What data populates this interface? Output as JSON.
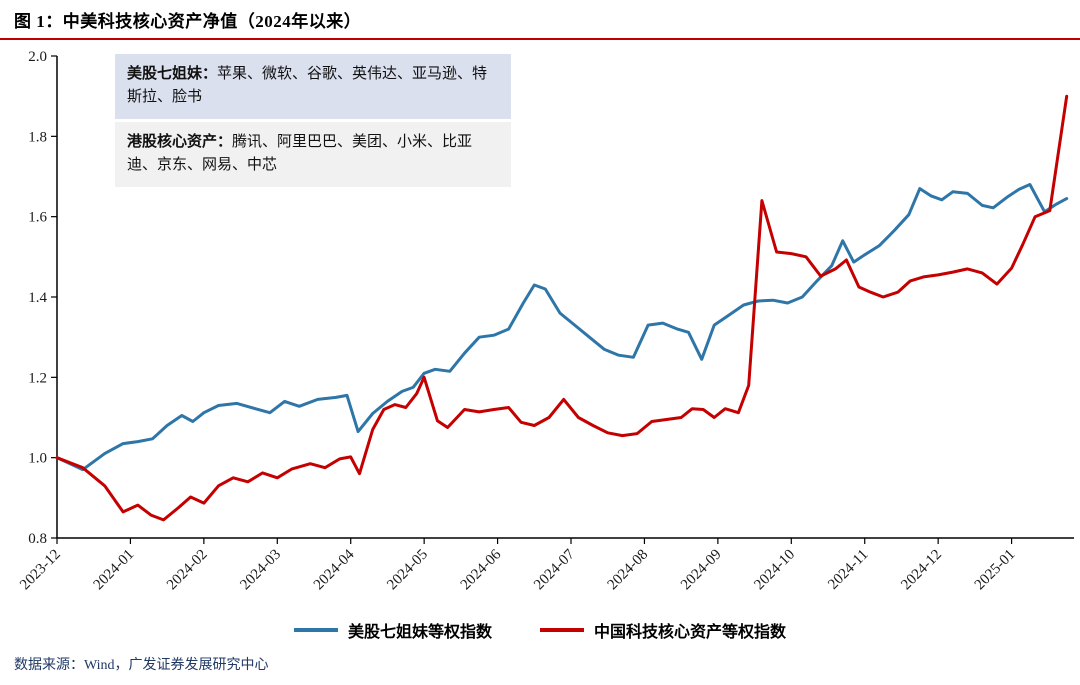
{
  "figure": {
    "title": "图 1：中美科技核心资产净值（2024年以来）",
    "source": "数据来源：Wind，广发证券发展研究中心"
  },
  "annotations": {
    "box1_label": "美股七姐妹：",
    "box1_text": "苹果、微软、谷歌、英伟达、亚马逊、特斯拉、脸书",
    "box2_label": "港股核心资产：",
    "box2_text": "腾讯、阿里巴巴、美团、小米、比亚迪、京东、网易、中芯"
  },
  "legend": [
    {
      "label": "美股七姐妹等权指数",
      "color": "#2e75a8"
    },
    {
      "label": "中国科技核心资产等权指数",
      "color": "#c40000"
    }
  ],
  "colors": {
    "accent_rule": "#c00000",
    "axis": "#000000",
    "note1_bg": "#dbe0ef",
    "note2_bg": "#f1f1f1"
  },
  "chart_data": {
    "type": "line",
    "title": "中美科技核心资产净值（2024年以来）",
    "xlabel": "",
    "ylabel": "",
    "grid": false,
    "legend_position": "bottom",
    "ylim": [
      0.8,
      2.0
    ],
    "y_ticks": [
      "2.0",
      "1.8",
      "1.6",
      "1.4",
      "1.2",
      "1.0",
      "0.8"
    ],
    "y_tick_values": [
      2.0,
      1.8,
      1.6,
      1.4,
      1.2,
      1.0,
      0.8
    ],
    "xlim": [
      0,
      13.85
    ],
    "x_tick_positions": [
      0,
      1,
      2,
      3,
      4,
      5,
      6,
      7,
      8,
      9,
      10,
      11,
      12,
      13
    ],
    "x_tick_labels": [
      "2023-12",
      "2024-01",
      "2024-02",
      "2024-03",
      "2024-04",
      "2024-05",
      "2024-06",
      "2024-07",
      "2024-08",
      "2024-09",
      "2024-10",
      "2024-11",
      "2024-12",
      "2025-01"
    ],
    "series": [
      {
        "name": "美股七姐妹等权指数",
        "color": "#2e75a8",
        "width": 3,
        "points": [
          [
            0.0,
            1.0
          ],
          [
            0.35,
            0.97
          ],
          [
            0.65,
            1.01
          ],
          [
            0.9,
            1.035
          ],
          [
            1.1,
            1.04
          ],
          [
            1.3,
            1.047
          ],
          [
            1.5,
            1.08
          ],
          [
            1.7,
            1.105
          ],
          [
            1.85,
            1.09
          ],
          [
            2.0,
            1.112
          ],
          [
            2.2,
            1.13
          ],
          [
            2.45,
            1.135
          ],
          [
            2.7,
            1.122
          ],
          [
            2.9,
            1.112
          ],
          [
            3.1,
            1.14
          ],
          [
            3.3,
            1.128
          ],
          [
            3.55,
            1.145
          ],
          [
            3.8,
            1.15
          ],
          [
            3.95,
            1.155
          ],
          [
            4.1,
            1.065
          ],
          [
            4.3,
            1.11
          ],
          [
            4.5,
            1.14
          ],
          [
            4.7,
            1.165
          ],
          [
            4.85,
            1.175
          ],
          [
            5.0,
            1.21
          ],
          [
            5.15,
            1.22
          ],
          [
            5.35,
            1.215
          ],
          [
            5.55,
            1.26
          ],
          [
            5.75,
            1.3
          ],
          [
            5.95,
            1.305
          ],
          [
            6.15,
            1.32
          ],
          [
            6.35,
            1.385
          ],
          [
            6.5,
            1.43
          ],
          [
            6.65,
            1.42
          ],
          [
            6.85,
            1.36
          ],
          [
            7.05,
            1.33
          ],
          [
            7.25,
            1.3
          ],
          [
            7.45,
            1.27
          ],
          [
            7.65,
            1.255
          ],
          [
            7.85,
            1.25
          ],
          [
            8.05,
            1.33
          ],
          [
            8.25,
            1.335
          ],
          [
            8.45,
            1.32
          ],
          [
            8.6,
            1.312
          ],
          [
            8.78,
            1.245
          ],
          [
            8.95,
            1.33
          ],
          [
            9.15,
            1.355
          ],
          [
            9.35,
            1.38
          ],
          [
            9.55,
            1.39
          ],
          [
            9.75,
            1.392
          ],
          [
            9.95,
            1.385
          ],
          [
            10.15,
            1.4
          ],
          [
            10.35,
            1.44
          ],
          [
            10.55,
            1.478
          ],
          [
            10.7,
            1.54
          ],
          [
            10.85,
            1.487
          ],
          [
            11.0,
            1.505
          ],
          [
            11.2,
            1.528
          ],
          [
            11.4,
            1.565
          ],
          [
            11.6,
            1.605
          ],
          [
            11.75,
            1.67
          ],
          [
            11.9,
            1.652
          ],
          [
            12.05,
            1.642
          ],
          [
            12.2,
            1.662
          ],
          [
            12.4,
            1.658
          ],
          [
            12.6,
            1.628
          ],
          [
            12.75,
            1.622
          ],
          [
            12.95,
            1.65
          ],
          [
            13.1,
            1.668
          ],
          [
            13.25,
            1.68
          ],
          [
            13.45,
            1.612
          ],
          [
            13.6,
            1.63
          ],
          [
            13.75,
            1.645
          ]
        ]
      },
      {
        "name": "中国科技核心资产等权指数",
        "color": "#c40000",
        "width": 3,
        "points": [
          [
            0.0,
            1.0
          ],
          [
            0.35,
            0.975
          ],
          [
            0.65,
            0.93
          ],
          [
            0.9,
            0.865
          ],
          [
            1.1,
            0.882
          ],
          [
            1.28,
            0.857
          ],
          [
            1.45,
            0.845
          ],
          [
            1.65,
            0.875
          ],
          [
            1.82,
            0.902
          ],
          [
            2.0,
            0.887
          ],
          [
            2.2,
            0.93
          ],
          [
            2.4,
            0.95
          ],
          [
            2.6,
            0.94
          ],
          [
            2.8,
            0.962
          ],
          [
            3.0,
            0.95
          ],
          [
            3.2,
            0.972
          ],
          [
            3.45,
            0.985
          ],
          [
            3.65,
            0.975
          ],
          [
            3.85,
            0.997
          ],
          [
            4.0,
            1.002
          ],
          [
            4.12,
            0.96
          ],
          [
            4.3,
            1.07
          ],
          [
            4.45,
            1.12
          ],
          [
            4.6,
            1.132
          ],
          [
            4.75,
            1.125
          ],
          [
            4.9,
            1.16
          ],
          [
            5.0,
            1.2
          ],
          [
            5.18,
            1.092
          ],
          [
            5.32,
            1.075
          ],
          [
            5.55,
            1.12
          ],
          [
            5.75,
            1.114
          ],
          [
            5.95,
            1.12
          ],
          [
            6.15,
            1.125
          ],
          [
            6.32,
            1.088
          ],
          [
            6.5,
            1.08
          ],
          [
            6.7,
            1.1
          ],
          [
            6.9,
            1.145
          ],
          [
            7.1,
            1.1
          ],
          [
            7.3,
            1.08
          ],
          [
            7.5,
            1.062
          ],
          [
            7.7,
            1.055
          ],
          [
            7.9,
            1.06
          ],
          [
            8.1,
            1.09
          ],
          [
            8.3,
            1.095
          ],
          [
            8.5,
            1.1
          ],
          [
            8.65,
            1.122
          ],
          [
            8.8,
            1.12
          ],
          [
            8.95,
            1.1
          ],
          [
            9.1,
            1.122
          ],
          [
            9.28,
            1.112
          ],
          [
            9.42,
            1.18
          ],
          [
            9.6,
            1.64
          ],
          [
            9.8,
            1.512
          ],
          [
            10.0,
            1.508
          ],
          [
            10.2,
            1.5
          ],
          [
            10.4,
            1.452
          ],
          [
            10.6,
            1.47
          ],
          [
            10.75,
            1.492
          ],
          [
            10.92,
            1.425
          ],
          [
            11.08,
            1.412
          ],
          [
            11.25,
            1.4
          ],
          [
            11.45,
            1.412
          ],
          [
            11.62,
            1.44
          ],
          [
            11.8,
            1.45
          ],
          [
            12.0,
            1.455
          ],
          [
            12.2,
            1.462
          ],
          [
            12.4,
            1.47
          ],
          [
            12.6,
            1.46
          ],
          [
            12.8,
            1.432
          ],
          [
            13.0,
            1.472
          ],
          [
            13.15,
            1.53
          ],
          [
            13.32,
            1.6
          ],
          [
            13.52,
            1.615
          ],
          [
            13.75,
            1.9
          ]
        ]
      }
    ]
  }
}
